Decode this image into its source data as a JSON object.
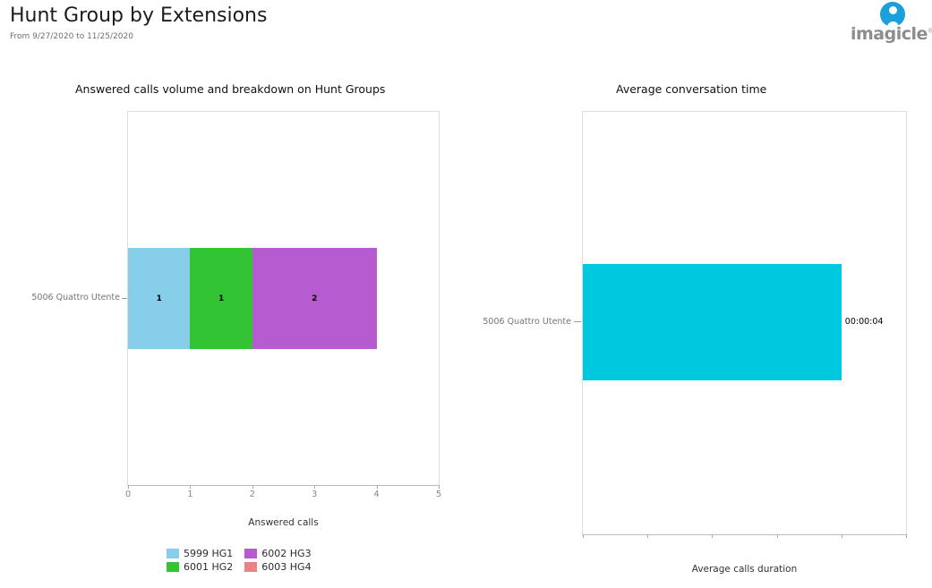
{
  "header": {
    "title": "Hunt Group by Extensions",
    "date_range": "From 9/27/2020 to 11/25/2020"
  },
  "logo": {
    "text": "imagicle",
    "registered": "®",
    "mark_color": "#1BA0DC",
    "text_color": "#8C8C8C"
  },
  "chart_data": [
    {
      "type": "bar",
      "orientation": "horizontal",
      "stacked": true,
      "title": "Answered calls volume and breakdown on Hunt Groups",
      "categories": [
        "5006 Quattro Utente"
      ],
      "series": [
        {
          "name": "5999 HG1",
          "color": "#87CEEB",
          "values": [
            1
          ]
        },
        {
          "name": "6001 HG2",
          "color": "#33C433",
          "values": [
            1
          ]
        },
        {
          "name": "6002 HG3",
          "color": "#B75BD1",
          "values": [
            2
          ]
        },
        {
          "name": "6003 HG4",
          "color": "#EA8383",
          "values": [
            0
          ]
        }
      ],
      "xlabel": "Answered calls",
      "xlim": [
        0,
        5
      ],
      "xticks": [
        0,
        1,
        2,
        3,
        4,
        5
      ],
      "show_tick_labels": true,
      "legend_position": "bottom",
      "grid": false
    },
    {
      "type": "bar",
      "orientation": "horizontal",
      "stacked": false,
      "title": "Average conversation time",
      "categories": [
        "5006 Quattro Utente"
      ],
      "series": [
        {
          "name": "Average calls duration",
          "color": "#00C8DF",
          "values_seconds": [
            4
          ],
          "values_display": [
            "00:00:04"
          ]
        }
      ],
      "xlabel": "Average calls duration",
      "xlim": [
        0,
        5
      ],
      "xticks": [
        0,
        1,
        2,
        3,
        4,
        5
      ],
      "show_tick_labels": false,
      "grid": false
    }
  ]
}
